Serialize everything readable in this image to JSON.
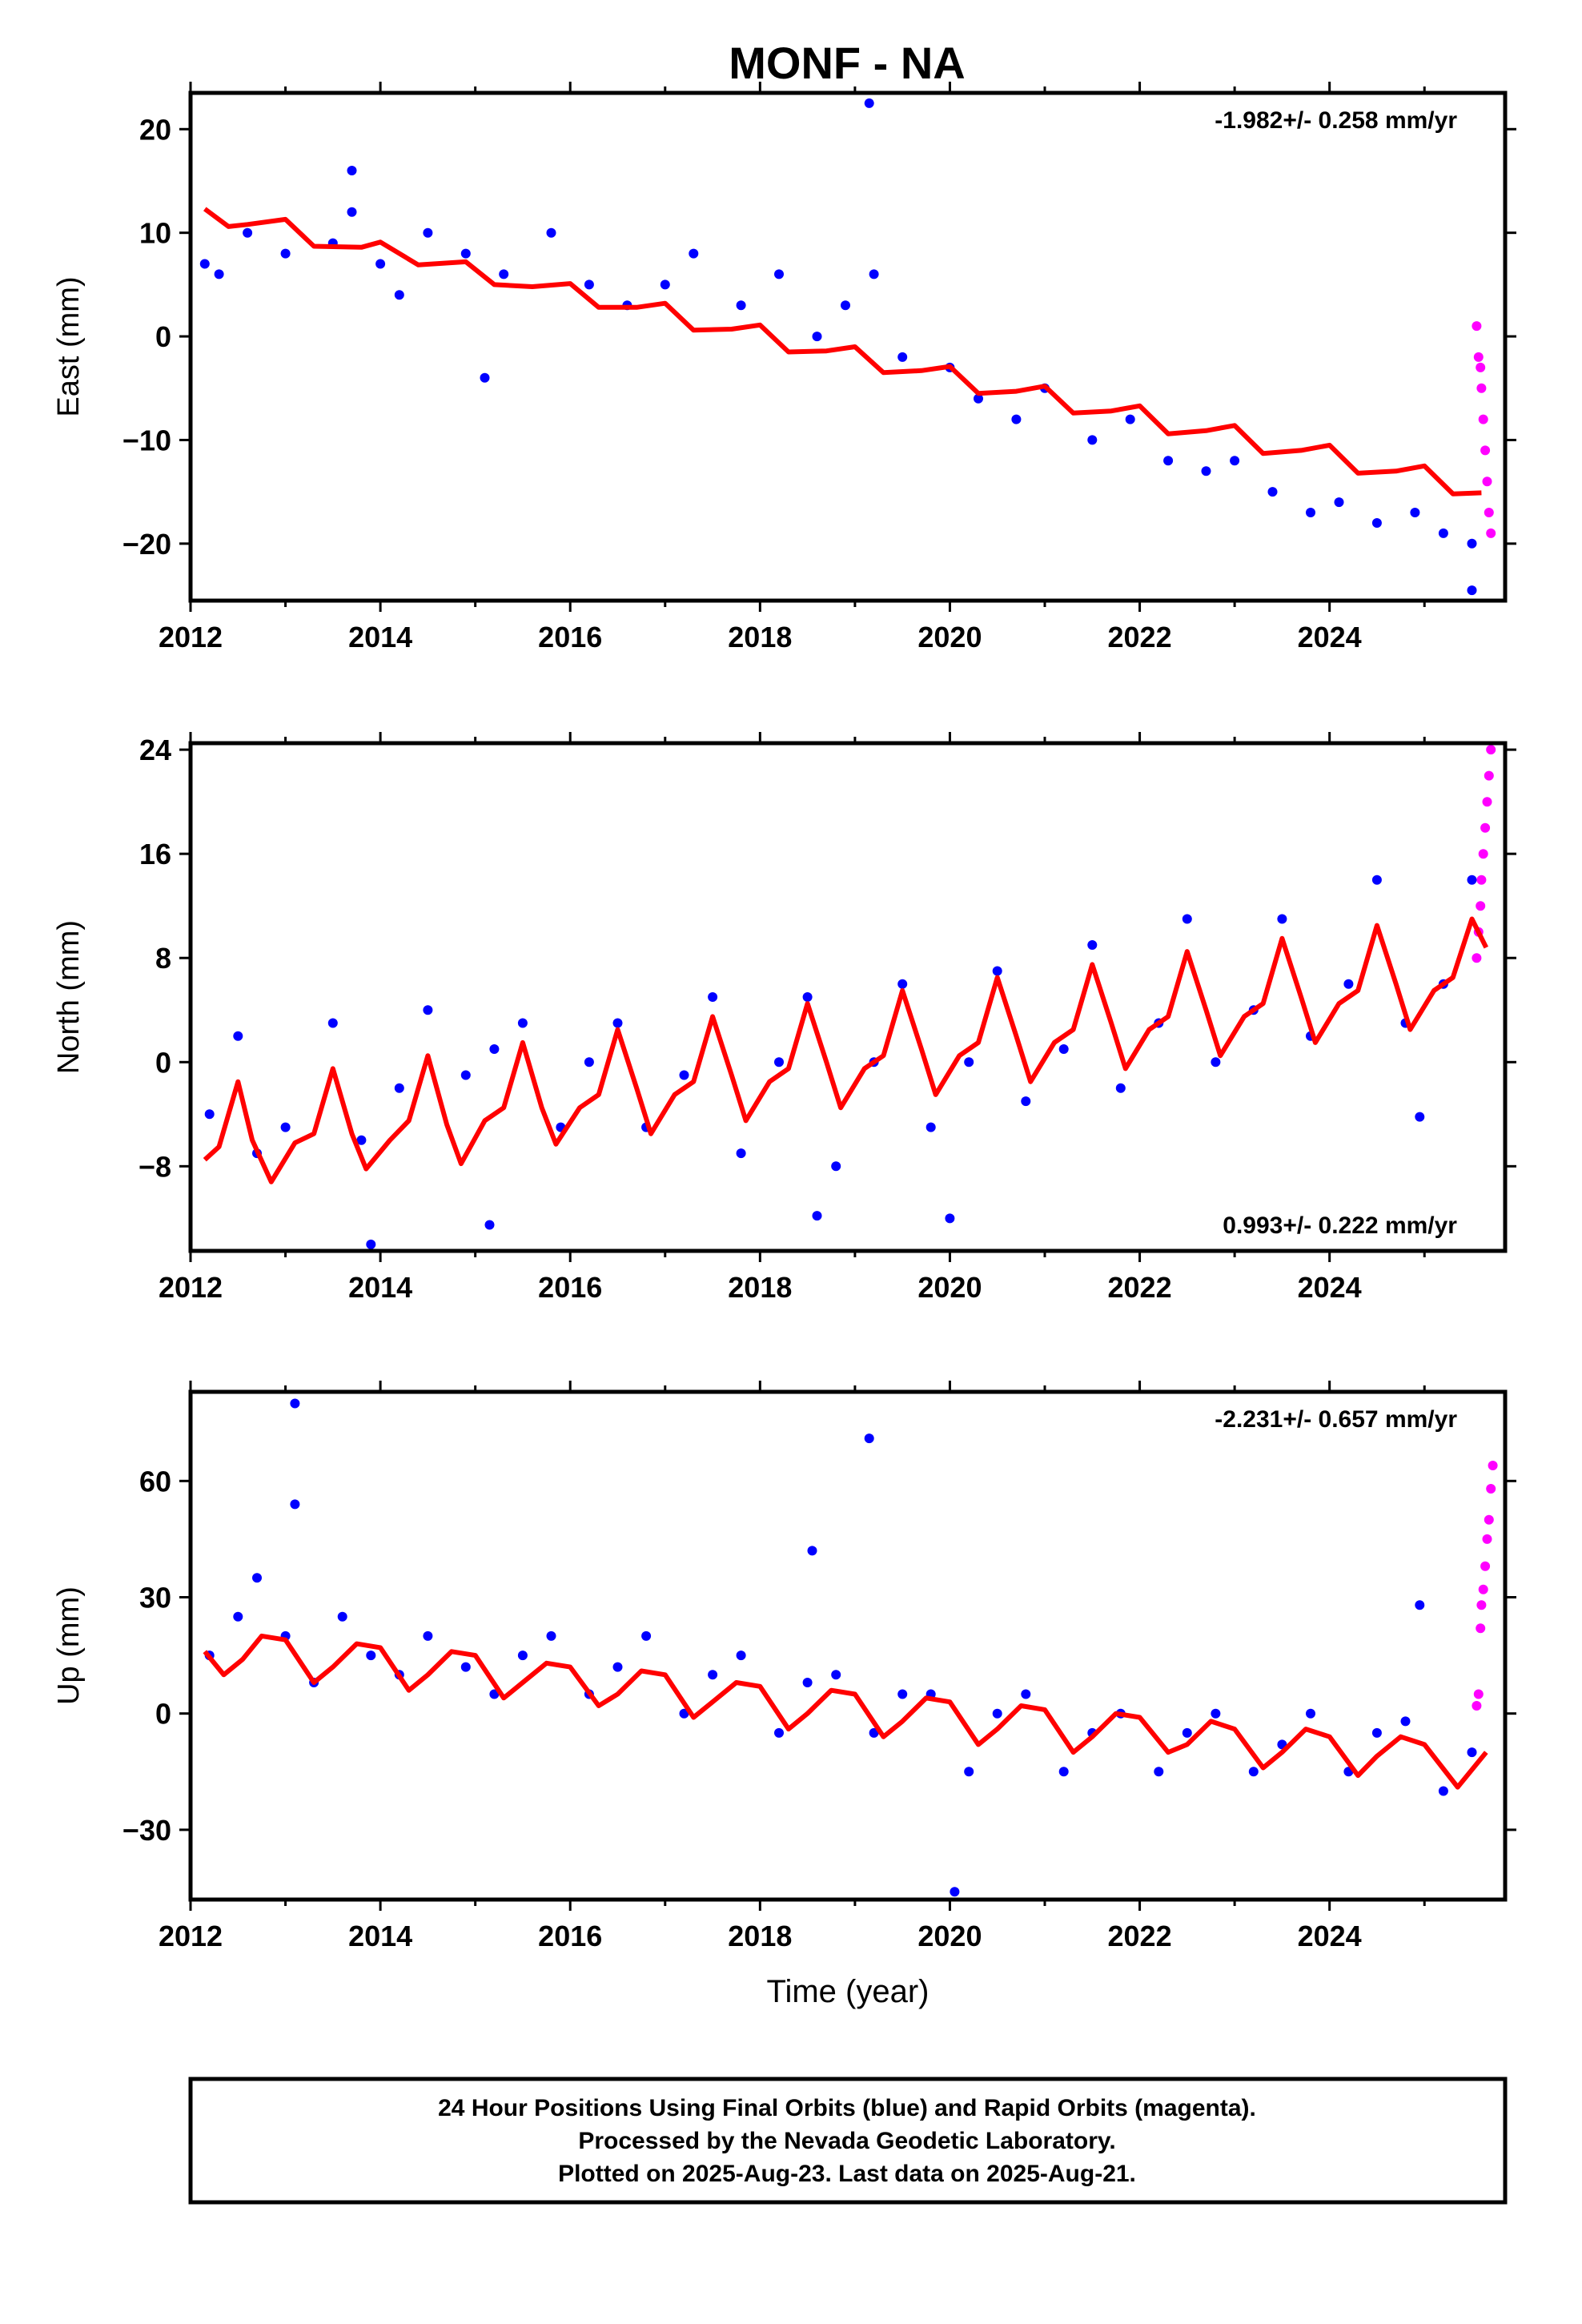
{
  "title": "MONF - NA",
  "footer": {
    "line1": "24 Hour Positions Using Final Orbits (blue) and Rapid Orbits (magenta).",
    "line2": "Processed by the Nevada Geodetic Laboratory.",
    "line3": "Plotted on 2025-Aug-23. Last data on 2025-Aug-21."
  },
  "colors": {
    "final": "#0000ff",
    "rapid": "#ff00ff",
    "model": "#ff0000",
    "frame": "#000000"
  },
  "chart_data": [
    {
      "type": "scatter",
      "ylabel": "East (mm)",
      "rate_text": "-1.982+/- 0.258 mm/yr",
      "rate_position": "top-right",
      "xlim": [
        2012.0,
        2025.85
      ],
      "ylim": [
        -25.5,
        23.5
      ],
      "xticks": [
        2012,
        2014,
        2016,
        2018,
        2020,
        2022,
        2024
      ],
      "yticks": [
        20,
        10,
        0,
        -10,
        -20
      ],
      "ytick_labels": [
        "20",
        "10",
        "0",
        "−10",
        "−20"
      ],
      "series": [
        {
          "role": "final",
          "x": [
            2012.15,
            2012.3,
            2012.6,
            2013.0,
            2013.5,
            2013.7,
            2014.0,
            2014.2,
            2014.5,
            2014.9,
            2015.3,
            2015.8,
            2016.2,
            2016.6,
            2017.0,
            2017.3,
            2017.8,
            2018.2,
            2018.6,
            2018.9,
            2019.2,
            2019.5,
            2020.0,
            2020.3,
            2020.7,
            2021.0,
            2021.5,
            2021.9,
            2022.3,
            2022.7,
            2023.0,
            2023.4,
            2023.8,
            2024.1,
            2024.5,
            2024.9,
            2025.2,
            2025.5,
            2013.7,
            2015.1,
            2019.15,
            2025.5
          ],
          "y": [
            7,
            6,
            10,
            8,
            9,
            12,
            7,
            4,
            10,
            8,
            6,
            10,
            5,
            3,
            5,
            8,
            3,
            6,
            0,
            3,
            6,
            -2,
            -3,
            -6,
            -8,
            -5,
            -10,
            -8,
            -12,
            -13,
            -12,
            -15,
            -17,
            -16,
            -18,
            -17,
            -19,
            -20,
            16,
            -4,
            22.5,
            -24.5
          ]
        },
        {
          "role": "rapid",
          "x": [
            2025.55,
            2025.57,
            2025.59,
            2025.6,
            2025.62,
            2025.64,
            2025.66,
            2025.68,
            2025.7
          ],
          "y": [
            1,
            -2,
            -3,
            -5,
            -8,
            -11,
            -14,
            -17,
            -19
          ]
        },
        {
          "role": "model",
          "x": [
            2012.15,
            2012.4,
            2012.6,
            2013.0,
            2013.3,
            2013.8,
            2014.0,
            2014.4,
            2014.9,
            2015.2,
            2015.6,
            2016.0,
            2016.3,
            2016.7,
            2017.0,
            2017.3,
            2017.7,
            2018.0,
            2018.3,
            2018.7,
            2019.0,
            2019.3,
            2019.7,
            2020.0,
            2020.3,
            2020.7,
            2021.0,
            2021.3,
            2021.7,
            2022.0,
            2022.3,
            2022.7,
            2023.0,
            2023.3,
            2023.7,
            2024.0,
            2024.3,
            2024.7,
            2025.0,
            2025.3,
            2025.6
          ],
          "y": [
            12.3,
            10.6,
            10.8,
            11.3,
            8.7,
            8.6,
            9.1,
            6.9,
            7.2,
            5.0,
            4.8,
            5.1,
            2.8,
            2.8,
            3.2,
            0.6,
            0.7,
            1.1,
            -1.5,
            -1.4,
            -1.0,
            -3.5,
            -3.3,
            -2.9,
            -5.5,
            -5.3,
            -4.8,
            -7.4,
            -7.2,
            -6.7,
            -9.4,
            -9.1,
            -8.6,
            -11.3,
            -11.0,
            -10.5,
            -13.2,
            -13.0,
            -12.5,
            -15.2,
            -15.1
          ]
        }
      ]
    },
    {
      "type": "scatter",
      "ylabel": "North (mm)",
      "rate_text": "0.993+/- 0.222 mm/yr",
      "rate_position": "bottom-right",
      "xlim": [
        2012.0,
        2025.85
      ],
      "ylim": [
        -14.5,
        24.5
      ],
      "xticks": [
        2012,
        2014,
        2016,
        2018,
        2020,
        2022,
        2024
      ],
      "yticks": [
        24,
        16,
        8,
        0,
        -8
      ],
      "ytick_labels": [
        "24",
        "16",
        "8",
        "0",
        "−8"
      ],
      "series": [
        {
          "role": "final",
          "x": [
            2012.2,
            2012.5,
            2012.7,
            2013.0,
            2013.5,
            2013.8,
            2014.2,
            2014.5,
            2014.9,
            2015.2,
            2015.5,
            2015.9,
            2016.2,
            2016.5,
            2016.8,
            2017.2,
            2017.5,
            2017.8,
            2018.2,
            2018.5,
            2018.8,
            2019.2,
            2019.5,
            2019.8,
            2020.2,
            2020.5,
            2020.8,
            2021.2,
            2021.5,
            2021.8,
            2022.2,
            2022.5,
            2022.8,
            2023.2,
            2023.5,
            2023.8,
            2024.2,
            2024.5,
            2024.8,
            2025.2,
            2025.5,
            2013.9,
            2015.15,
            2018.6,
            2020.0,
            2024.95
          ],
          "y": [
            -4,
            2,
            -7,
            -5,
            3,
            -6,
            -2,
            4,
            -1,
            1,
            3,
            -5,
            0,
            3,
            -5,
            -1,
            5,
            -7,
            0,
            5,
            -8,
            0,
            6,
            -5,
            0,
            7,
            -3,
            1,
            9,
            -2,
            3,
            11,
            0,
            4,
            11,
            2,
            6,
            14,
            3,
            6,
            14,
            -14,
            -12.5,
            -11.8,
            -12,
            -4.2
          ]
        },
        {
          "role": "rapid",
          "x": [
            2025.55,
            2025.57,
            2025.59,
            2025.6,
            2025.62,
            2025.64,
            2025.66,
            2025.68,
            2025.7
          ],
          "y": [
            8,
            10,
            12,
            14,
            16,
            18,
            20,
            22,
            24
          ]
        },
        {
          "role": "model",
          "x": [
            2012.15,
            2012.3,
            2012.5,
            2012.65,
            2012.85,
            2013.1,
            2013.3,
            2013.5,
            2013.7,
            2013.85,
            2014.1,
            2014.3,
            2014.5,
            2014.7,
            2014.85,
            2015.1,
            2015.3,
            2015.5,
            2015.7,
            2015.85,
            2016.1,
            2016.3,
            2016.5,
            2016.7,
            2016.85,
            2017.1,
            2017.3,
            2017.5,
            2017.7,
            2017.85,
            2018.1,
            2018.3,
            2018.5,
            2018.7,
            2018.85,
            2019.1,
            2019.3,
            2019.5,
            2019.7,
            2019.85,
            2020.1,
            2020.3,
            2020.5,
            2020.7,
            2020.85,
            2021.1,
            2021.3,
            2021.5,
            2021.7,
            2021.85,
            2022.1,
            2022.3,
            2022.5,
            2022.7,
            2022.85,
            2023.1,
            2023.3,
            2023.5,
            2023.7,
            2023.85,
            2024.1,
            2024.3,
            2024.5,
            2024.7,
            2024.85,
            2025.1,
            2025.3,
            2025.5,
            2025.65
          ],
          "y": [
            -7.5,
            -6.5,
            -1.5,
            -6.0,
            -9.2,
            -6.2,
            -5.5,
            -0.5,
            -5.5,
            -8.2,
            -6.0,
            -4.5,
            0.5,
            -4.8,
            -7.8,
            -4.5,
            -3.5,
            1.5,
            -3.5,
            -6.3,
            -3.5,
            -2.5,
            2.5,
            -2.0,
            -5.5,
            -2.5,
            -1.5,
            3.5,
            -1.0,
            -4.5,
            -1.5,
            -0.5,
            4.5,
            0.0,
            -3.5,
            -0.5,
            0.5,
            5.5,
            1.0,
            -2.5,
            0.5,
            1.5,
            6.5,
            2.0,
            -1.5,
            1.5,
            2.5,
            7.5,
            3.0,
            -0.5,
            2.5,
            3.5,
            8.5,
            4.0,
            0.5,
            3.5,
            4.5,
            9.5,
            5.0,
            1.5,
            4.5,
            5.5,
            10.5,
            6.0,
            2.5,
            5.5,
            6.5,
            11.0,
            8.8
          ]
        }
      ]
    },
    {
      "type": "scatter",
      "ylabel": "Up (mm)",
      "xlabel": "Time (year)",
      "rate_text": "-2.231+/- 0.657 mm/yr",
      "rate_position": "top-right",
      "xlim": [
        2012.0,
        2025.85
      ],
      "ylim": [
        -48,
        83
      ],
      "xticks": [
        2012,
        2014,
        2016,
        2018,
        2020,
        2022,
        2024
      ],
      "yticks": [
        60,
        30,
        0,
        -30
      ],
      "ytick_labels": [
        "60",
        "30",
        "0",
        "−30"
      ],
      "series": [
        {
          "role": "final",
          "x": [
            2012.2,
            2012.5,
            2012.7,
            2013.0,
            2013.3,
            2013.6,
            2013.9,
            2014.2,
            2014.5,
            2014.9,
            2015.2,
            2015.5,
            2015.8,
            2016.2,
            2016.5,
            2016.8,
            2017.2,
            2017.5,
            2017.8,
            2018.2,
            2018.5,
            2018.8,
            2019.2,
            2019.5,
            2019.8,
            2020.2,
            2020.5,
            2020.8,
            2021.2,
            2021.5,
            2021.8,
            2022.2,
            2022.5,
            2022.8,
            2023.2,
            2023.5,
            2023.8,
            2024.2,
            2024.5,
            2024.8,
            2025.2,
            2025.5,
            2013.1,
            2013.1,
            2018.55,
            2019.15,
            2020.05,
            2024.95
          ],
          "y": [
            15,
            25,
            35,
            20,
            8,
            25,
            15,
            10,
            20,
            12,
            5,
            15,
            20,
            5,
            12,
            20,
            0,
            10,
            15,
            -5,
            8,
            10,
            -5,
            5,
            5,
            -15,
            0,
            5,
            -15,
            -5,
            0,
            -15,
            -5,
            0,
            -15,
            -8,
            0,
            -15,
            -5,
            -2,
            -20,
            -10,
            80,
            54,
            42,
            71,
            -46,
            28
          ]
        },
        {
          "role": "rapid",
          "x": [
            2025.55,
            2025.57,
            2025.59,
            2025.6,
            2025.62,
            2025.64,
            2025.66,
            2025.68,
            2025.7,
            2025.72
          ],
          "y": [
            2,
            5,
            22,
            28,
            32,
            38,
            45,
            50,
            58,
            64
          ]
        },
        {
          "role": "model",
          "x": [
            2012.15,
            2012.35,
            2012.55,
            2012.75,
            2013.0,
            2013.3,
            2013.5,
            2013.75,
            2014.0,
            2014.3,
            2014.5,
            2014.75,
            2015.0,
            2015.3,
            2015.5,
            2015.75,
            2016.0,
            2016.3,
            2016.5,
            2016.75,
            2017.0,
            2017.3,
            2017.5,
            2017.75,
            2018.0,
            2018.3,
            2018.5,
            2018.75,
            2019.0,
            2019.3,
            2019.5,
            2019.75,
            2020.0,
            2020.3,
            2020.5,
            2020.75,
            2021.0,
            2021.3,
            2021.5,
            2021.75,
            2022.0,
            2022.3,
            2022.5,
            2022.75,
            2023.0,
            2023.3,
            2023.5,
            2023.75,
            2024.0,
            2024.3,
            2024.5,
            2024.75,
            2025.0,
            2025.35,
            2025.65
          ],
          "y": [
            16,
            10,
            14,
            20,
            19,
            8,
            12,
            18,
            17,
            6,
            10,
            16,
            15,
            4,
            8,
            13,
            12,
            2,
            5,
            11,
            10,
            -1,
            3,
            8,
            7,
            -4,
            0,
            6,
            5,
            -6,
            -2,
            4,
            3,
            -8,
            -4,
            2,
            1,
            -10,
            -6,
            0,
            -1,
            -10,
            -8,
            -2,
            -4,
            -14,
            -10,
            -4,
            -6,
            -16,
            -11,
            -6,
            -8,
            -19,
            -10
          ]
        }
      ]
    }
  ]
}
